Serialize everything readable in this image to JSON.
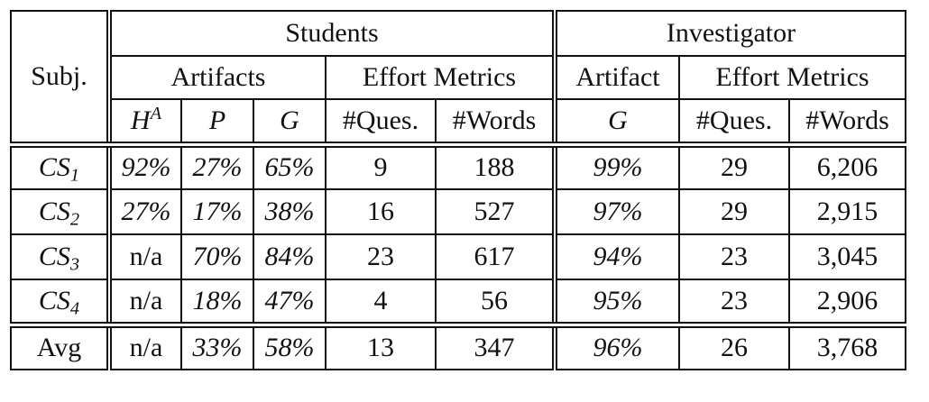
{
  "header": {
    "subject": "Subj.",
    "students": "Students",
    "investigator": "Investigator",
    "artifacts": "Artifacts",
    "effort_metrics": "Effort Metrics",
    "artifact": "Artifact",
    "effort_metrics_2": "Effort Metrics",
    "h_base": "H",
    "h_sup": "A",
    "p": "P",
    "g": "G",
    "ques": "#Ques.",
    "words": "#Words",
    "g2": "G",
    "ques2": "#Ques.",
    "words2": "#Words"
  },
  "rows": [
    {
      "label_base": "CS",
      "label_sub": "1",
      "h": "92%",
      "p": "27%",
      "g": "65%",
      "ques": "9",
      "words": "188",
      "inv_g": "99%",
      "inv_ques": "29",
      "inv_words": "6,206"
    },
    {
      "label_base": "CS",
      "label_sub": "2",
      "h": "27%",
      "p": "17%",
      "g": "38%",
      "ques": "16",
      "words": "527",
      "inv_g": "97%",
      "inv_ques": "29",
      "inv_words": "2,915"
    },
    {
      "label_base": "CS",
      "label_sub": "3",
      "h": "n/a",
      "p": "70%",
      "g": "84%",
      "ques": "23",
      "words": "617",
      "inv_g": "94%",
      "inv_ques": "23",
      "inv_words": "3,045"
    },
    {
      "label_base": "CS",
      "label_sub": "4",
      "h": "n/a",
      "p": "18%",
      "g": "47%",
      "ques": "4",
      "words": "56",
      "inv_g": "95%",
      "inv_ques": "23",
      "inv_words": "2,906"
    }
  ],
  "avg": {
    "label": "Avg",
    "h": "n/a",
    "p": "33%",
    "g": "58%",
    "ques": "13",
    "words": "347",
    "inv_g": "96%",
    "inv_ques": "26",
    "inv_words": "3,768"
  }
}
